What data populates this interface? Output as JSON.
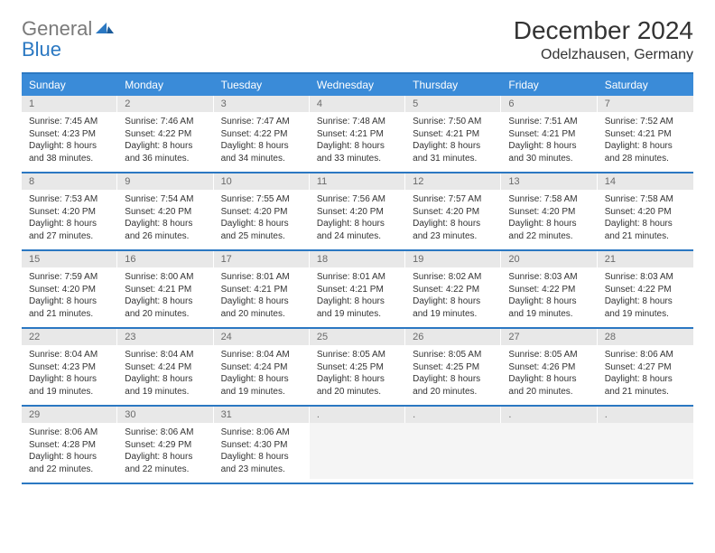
{
  "logo": {
    "line1": "General",
    "line2": "Blue"
  },
  "title": {
    "month": "December 2024",
    "location": "Odelzhausen, Germany"
  },
  "colors": {
    "header_bg": "#3a8bd8",
    "header_text": "#ffffff",
    "rule": "#2b78c2",
    "daynum_bg": "#e8e8e8",
    "daynum_text": "#6a6a6a",
    "body_text": "#333333",
    "logo_gray": "#7a7a7a",
    "logo_blue": "#2b78c2"
  },
  "layout": {
    "columns": 7,
    "day_header_fontsize": 12,
    "daynum_fontsize": 11,
    "body_fontsize": 10,
    "title_fontsize": 28,
    "location_fontsize": 16
  },
  "day_names": [
    "Sunday",
    "Monday",
    "Tuesday",
    "Wednesday",
    "Thursday",
    "Friday",
    "Saturday"
  ],
  "weeks": [
    [
      {
        "n": "1",
        "sunrise": "Sunrise: 7:45 AM",
        "sunset": "Sunset: 4:23 PM",
        "d1": "Daylight: 8 hours",
        "d2": "and 38 minutes."
      },
      {
        "n": "2",
        "sunrise": "Sunrise: 7:46 AM",
        "sunset": "Sunset: 4:22 PM",
        "d1": "Daylight: 8 hours",
        "d2": "and 36 minutes."
      },
      {
        "n": "3",
        "sunrise": "Sunrise: 7:47 AM",
        "sunset": "Sunset: 4:22 PM",
        "d1": "Daylight: 8 hours",
        "d2": "and 34 minutes."
      },
      {
        "n": "4",
        "sunrise": "Sunrise: 7:48 AM",
        "sunset": "Sunset: 4:21 PM",
        "d1": "Daylight: 8 hours",
        "d2": "and 33 minutes."
      },
      {
        "n": "5",
        "sunrise": "Sunrise: 7:50 AM",
        "sunset": "Sunset: 4:21 PM",
        "d1": "Daylight: 8 hours",
        "d2": "and 31 minutes."
      },
      {
        "n": "6",
        "sunrise": "Sunrise: 7:51 AM",
        "sunset": "Sunset: 4:21 PM",
        "d1": "Daylight: 8 hours",
        "d2": "and 30 minutes."
      },
      {
        "n": "7",
        "sunrise": "Sunrise: 7:52 AM",
        "sunset": "Sunset: 4:21 PM",
        "d1": "Daylight: 8 hours",
        "d2": "and 28 minutes."
      }
    ],
    [
      {
        "n": "8",
        "sunrise": "Sunrise: 7:53 AM",
        "sunset": "Sunset: 4:20 PM",
        "d1": "Daylight: 8 hours",
        "d2": "and 27 minutes."
      },
      {
        "n": "9",
        "sunrise": "Sunrise: 7:54 AM",
        "sunset": "Sunset: 4:20 PM",
        "d1": "Daylight: 8 hours",
        "d2": "and 26 minutes."
      },
      {
        "n": "10",
        "sunrise": "Sunrise: 7:55 AM",
        "sunset": "Sunset: 4:20 PM",
        "d1": "Daylight: 8 hours",
        "d2": "and 25 minutes."
      },
      {
        "n": "11",
        "sunrise": "Sunrise: 7:56 AM",
        "sunset": "Sunset: 4:20 PM",
        "d1": "Daylight: 8 hours",
        "d2": "and 24 minutes."
      },
      {
        "n": "12",
        "sunrise": "Sunrise: 7:57 AM",
        "sunset": "Sunset: 4:20 PM",
        "d1": "Daylight: 8 hours",
        "d2": "and 23 minutes."
      },
      {
        "n": "13",
        "sunrise": "Sunrise: 7:58 AM",
        "sunset": "Sunset: 4:20 PM",
        "d1": "Daylight: 8 hours",
        "d2": "and 22 minutes."
      },
      {
        "n": "14",
        "sunrise": "Sunrise: 7:58 AM",
        "sunset": "Sunset: 4:20 PM",
        "d1": "Daylight: 8 hours",
        "d2": "and 21 minutes."
      }
    ],
    [
      {
        "n": "15",
        "sunrise": "Sunrise: 7:59 AM",
        "sunset": "Sunset: 4:20 PM",
        "d1": "Daylight: 8 hours",
        "d2": "and 21 minutes."
      },
      {
        "n": "16",
        "sunrise": "Sunrise: 8:00 AM",
        "sunset": "Sunset: 4:21 PM",
        "d1": "Daylight: 8 hours",
        "d2": "and 20 minutes."
      },
      {
        "n": "17",
        "sunrise": "Sunrise: 8:01 AM",
        "sunset": "Sunset: 4:21 PM",
        "d1": "Daylight: 8 hours",
        "d2": "and 20 minutes."
      },
      {
        "n": "18",
        "sunrise": "Sunrise: 8:01 AM",
        "sunset": "Sunset: 4:21 PM",
        "d1": "Daylight: 8 hours",
        "d2": "and 19 minutes."
      },
      {
        "n": "19",
        "sunrise": "Sunrise: 8:02 AM",
        "sunset": "Sunset: 4:22 PM",
        "d1": "Daylight: 8 hours",
        "d2": "and 19 minutes."
      },
      {
        "n": "20",
        "sunrise": "Sunrise: 8:03 AM",
        "sunset": "Sunset: 4:22 PM",
        "d1": "Daylight: 8 hours",
        "d2": "and 19 minutes."
      },
      {
        "n": "21",
        "sunrise": "Sunrise: 8:03 AM",
        "sunset": "Sunset: 4:22 PM",
        "d1": "Daylight: 8 hours",
        "d2": "and 19 minutes."
      }
    ],
    [
      {
        "n": "22",
        "sunrise": "Sunrise: 8:04 AM",
        "sunset": "Sunset: 4:23 PM",
        "d1": "Daylight: 8 hours",
        "d2": "and 19 minutes."
      },
      {
        "n": "23",
        "sunrise": "Sunrise: 8:04 AM",
        "sunset": "Sunset: 4:24 PM",
        "d1": "Daylight: 8 hours",
        "d2": "and 19 minutes."
      },
      {
        "n": "24",
        "sunrise": "Sunrise: 8:04 AM",
        "sunset": "Sunset: 4:24 PM",
        "d1": "Daylight: 8 hours",
        "d2": "and 19 minutes."
      },
      {
        "n": "25",
        "sunrise": "Sunrise: 8:05 AM",
        "sunset": "Sunset: 4:25 PM",
        "d1": "Daylight: 8 hours",
        "d2": "and 20 minutes."
      },
      {
        "n": "26",
        "sunrise": "Sunrise: 8:05 AM",
        "sunset": "Sunset: 4:25 PM",
        "d1": "Daylight: 8 hours",
        "d2": "and 20 minutes."
      },
      {
        "n": "27",
        "sunrise": "Sunrise: 8:05 AM",
        "sunset": "Sunset: 4:26 PM",
        "d1": "Daylight: 8 hours",
        "d2": "and 20 minutes."
      },
      {
        "n": "28",
        "sunrise": "Sunrise: 8:06 AM",
        "sunset": "Sunset: 4:27 PM",
        "d1": "Daylight: 8 hours",
        "d2": "and 21 minutes."
      }
    ],
    [
      {
        "n": "29",
        "sunrise": "Sunrise: 8:06 AM",
        "sunset": "Sunset: 4:28 PM",
        "d1": "Daylight: 8 hours",
        "d2": "and 22 minutes."
      },
      {
        "n": "30",
        "sunrise": "Sunrise: 8:06 AM",
        "sunset": "Sunset: 4:29 PM",
        "d1": "Daylight: 8 hours",
        "d2": "and 22 minutes."
      },
      {
        "n": "31",
        "sunrise": "Sunrise: 8:06 AM",
        "sunset": "Sunset: 4:30 PM",
        "d1": "Daylight: 8 hours",
        "d2": "and 23 minutes."
      },
      {
        "empty": true
      },
      {
        "empty": true
      },
      {
        "empty": true
      },
      {
        "empty": true
      }
    ]
  ]
}
